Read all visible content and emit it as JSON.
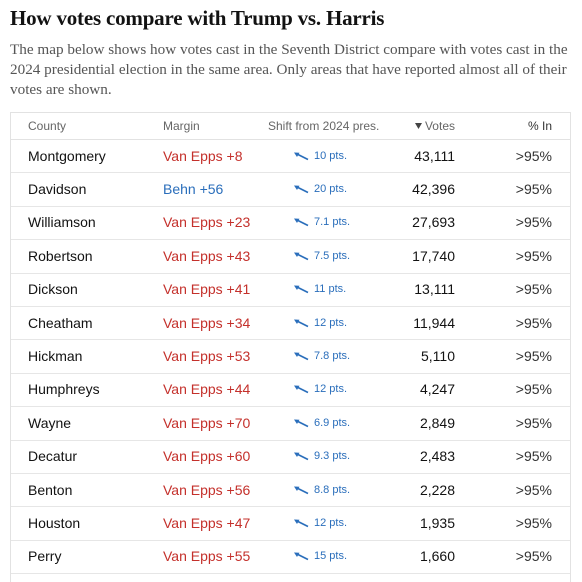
{
  "header": {
    "title": "How votes compare with Trump vs. Harris",
    "subtitle": "The map below shows how votes cast in the Seventh District compare with votes cast in the 2024 presidential election in the same area. Only areas that have reported almost all of their votes are shown."
  },
  "table": {
    "columns": [
      "County",
      "Margin",
      "Shift from 2024 pres.",
      "Votes",
      "% In"
    ],
    "rows": [
      {
        "county": "Montgomery",
        "margin": "Van Epps +8",
        "margin_color": "#c4302b",
        "shift": "10 pts.",
        "votes": "43,111",
        "pct_in": ">95%"
      },
      {
        "county": "Davidson",
        "margin": "Behn +56",
        "margin_color": "#2a6ebb",
        "shift": "20 pts.",
        "votes": "42,396",
        "pct_in": ">95%"
      },
      {
        "county": "Williamson",
        "margin": "Van Epps +23",
        "margin_color": "#c4302b",
        "shift": "7.1 pts.",
        "votes": "27,693",
        "pct_in": ">95%"
      },
      {
        "county": "Robertson",
        "margin": "Van Epps +43",
        "margin_color": "#c4302b",
        "shift": "7.5 pts.",
        "votes": "17,740",
        "pct_in": ">95%"
      },
      {
        "county": "Dickson",
        "margin": "Van Epps +41",
        "margin_color": "#c4302b",
        "shift": "11 pts.",
        "votes": "13,111",
        "pct_in": ">95%"
      },
      {
        "county": "Cheatham",
        "margin": "Van Epps +34",
        "margin_color": "#c4302b",
        "shift": "12 pts.",
        "votes": "11,944",
        "pct_in": ">95%"
      },
      {
        "county": "Hickman",
        "margin": "Van Epps +53",
        "margin_color": "#c4302b",
        "shift": "7.8 pts.",
        "votes": "5,110",
        "pct_in": ">95%"
      },
      {
        "county": "Humphreys",
        "margin": "Van Epps +44",
        "margin_color": "#c4302b",
        "shift": "12 pts.",
        "votes": "4,247",
        "pct_in": ">95%"
      },
      {
        "county": "Wayne",
        "margin": "Van Epps +70",
        "margin_color": "#c4302b",
        "shift": "6.9 pts.",
        "votes": "2,849",
        "pct_in": ">95%"
      },
      {
        "county": "Decatur",
        "margin": "Van Epps +60",
        "margin_color": "#c4302b",
        "shift": "9.3 pts.",
        "votes": "2,483",
        "pct_in": ">95%"
      },
      {
        "county": "Benton",
        "margin": "Van Epps +56",
        "margin_color": "#c4302b",
        "shift": "8.8 pts.",
        "votes": "2,228",
        "pct_in": ">95%"
      },
      {
        "county": "Houston",
        "margin": "Van Epps +47",
        "margin_color": "#c4302b",
        "shift": "12 pts.",
        "votes": "1,935",
        "pct_in": ">95%"
      },
      {
        "county": "Perry",
        "margin": "Van Epps +55",
        "margin_color": "#c4302b",
        "shift": "15 pts.",
        "votes": "1,660",
        "pct_in": ">95%"
      }
    ]
  }
}
